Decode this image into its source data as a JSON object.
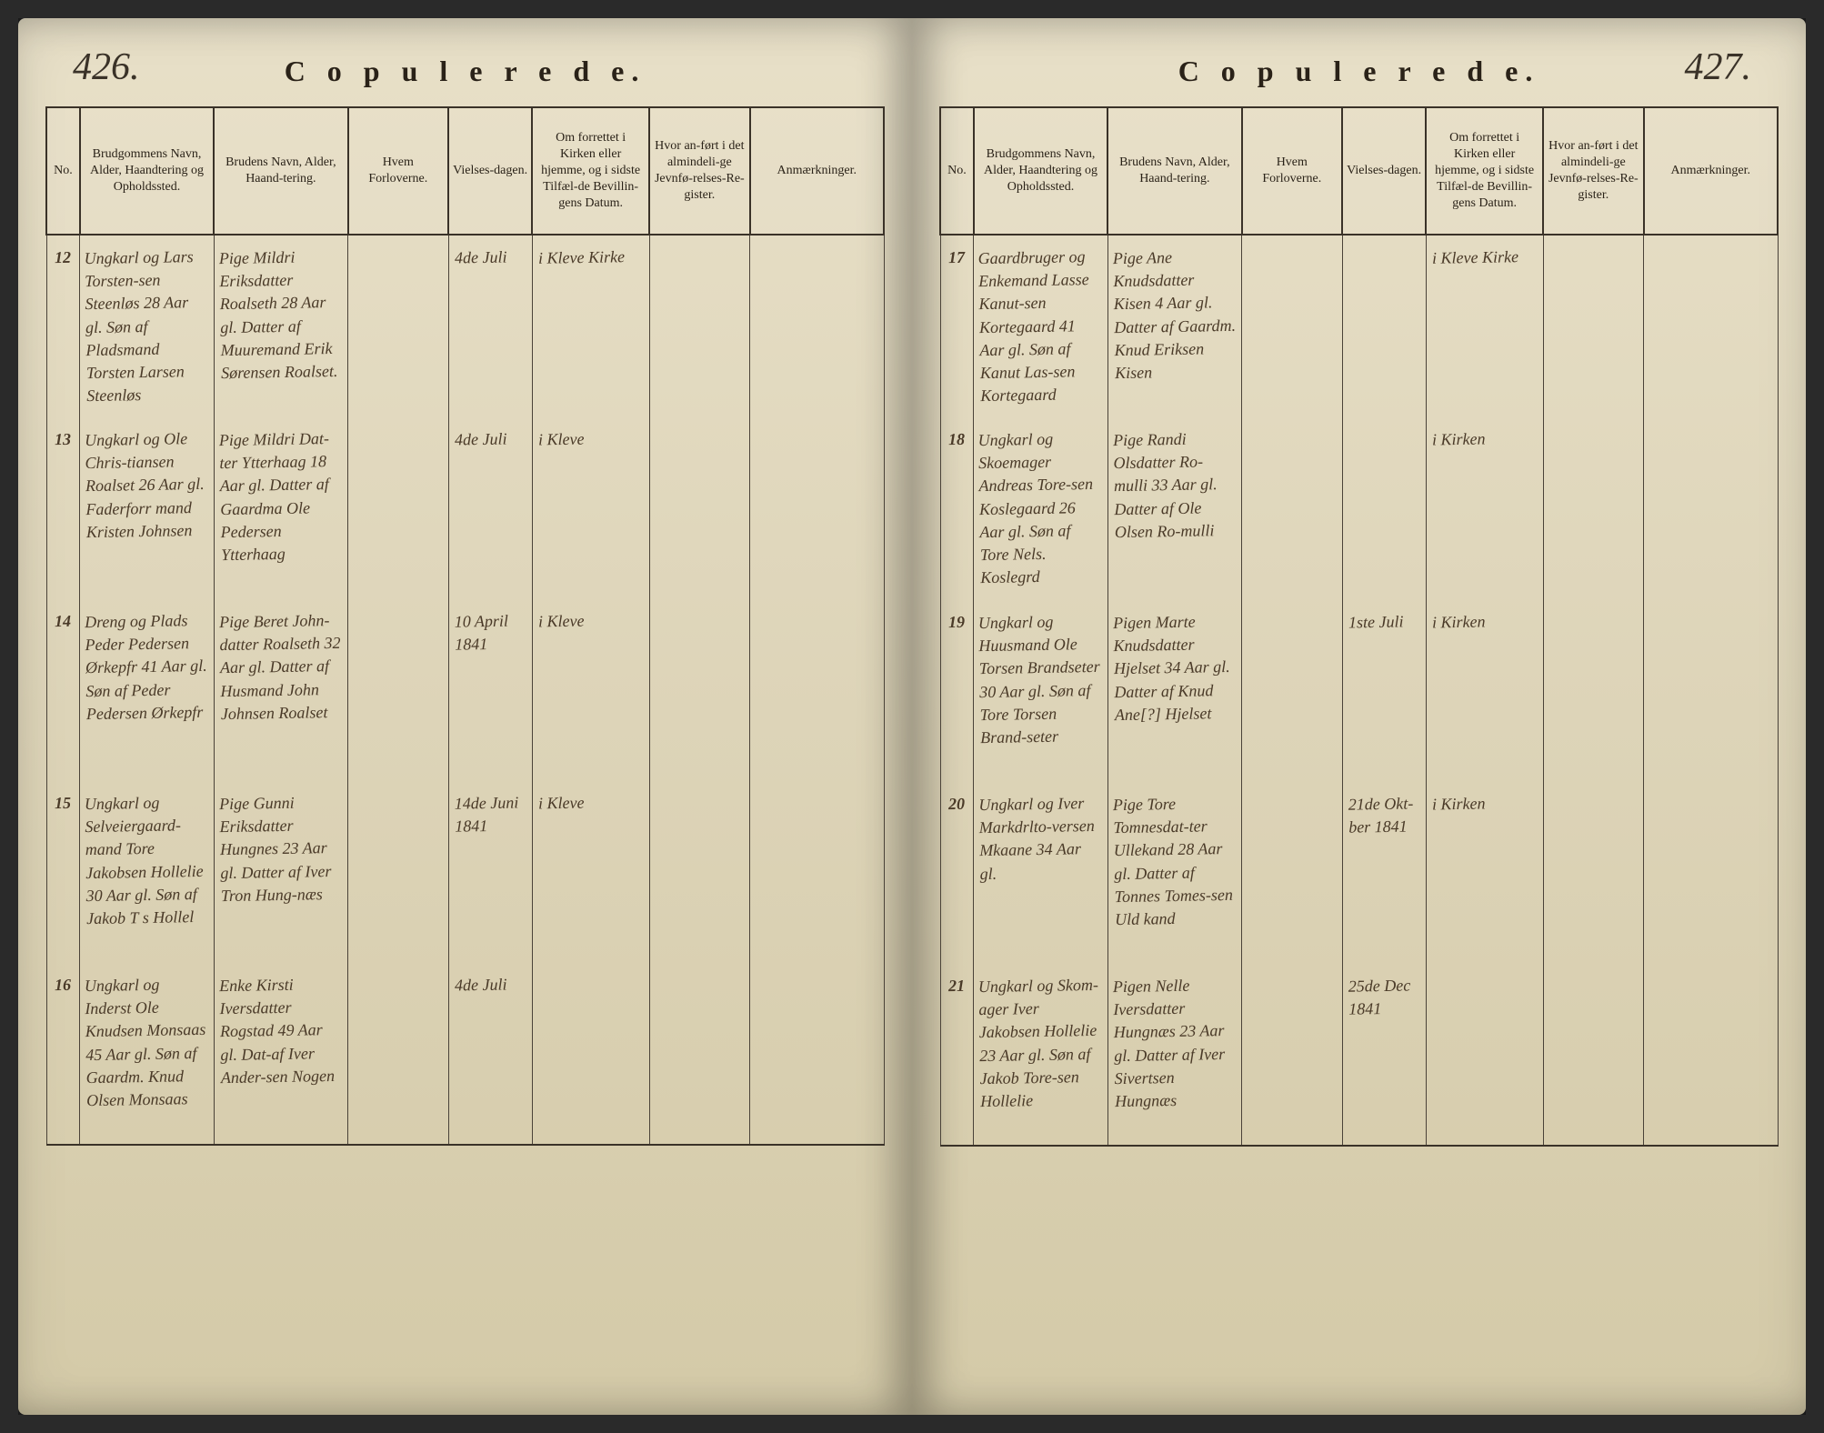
{
  "pages": {
    "left": {
      "number": "426.",
      "title": "C o p u l e r e d e."
    },
    "right": {
      "number": "427.",
      "title": "C o p u l e r e d e."
    }
  },
  "headers": {
    "no": "No.",
    "groom": "Brudgommens Navn, Alder, Haandtering og Opholdssted.",
    "bride": "Brudens Navn, Alder, Haand-tering.",
    "sponsors": "Hvem Forloverne.",
    "date": "Vielses-dagen.",
    "church": "Om forrettet i Kirken eller hjemme, og i sidste Tilfæl-de Bevillin-gens Datum.",
    "reference": "Hvor an-ført i det almindeli-ge Jevnfø-relses-Re-gister.",
    "notes": "Anmærkninger."
  },
  "left_rows": [
    {
      "no": "12",
      "groom": "Ungkarl og Lars Torsten-sen Steenløs 28 Aar gl. Søn af Pladsmand Torsten Larsen Steenløs",
      "bride": "Pige Mildri Eriksdatter Roalseth 28 Aar gl. Datter af Muuremand Erik Sørensen Roalset.",
      "sponsors": "",
      "date": "4de Juli",
      "church": "i Kleve Kirke",
      "reference": "",
      "notes": ""
    },
    {
      "no": "13",
      "groom": "Ungkarl og Ole Chris-tiansen Roalset 26 Aar gl. Faderforr mand Kristen Johnsen",
      "bride": "Pige Mildri Dat-ter Ytterhaag 18 Aar gl. Datter af Gaardma Ole Pedersen Ytterhaag",
      "sponsors": "",
      "date": "4de Juli",
      "church": "i Kleve",
      "reference": "",
      "notes": ""
    },
    {
      "no": "14",
      "groom": "Dreng og Plads Peder Pedersen Ørkepfr 41 Aar gl. Søn af Peder Pedersen Ørkepfr",
      "bride": "Pige Beret John-datter Roalseth 32 Aar gl. Datter af Husmand John Johnsen Roalset",
      "sponsors": "",
      "date": "10 April 1841",
      "church": "i Kleve",
      "reference": "",
      "notes": ""
    },
    {
      "no": "15",
      "groom": "Ungkarl og Selveiergaard-mand Tore Jakobsen Hollelie 30 Aar gl. Søn af Jakob T s Hollel",
      "bride": "Pige Gunni Eriksdatter Hungnes 23 Aar gl. Datter af Iver Tron Hung-næs",
      "sponsors": "",
      "date": "14de Juni 1841",
      "church": "i Kleve",
      "reference": "",
      "notes": ""
    },
    {
      "no": "16",
      "groom": "Ungkarl og Inderst Ole Knudsen Monsaas 45 Aar gl. Søn af Gaardm. Knud Olsen Monsaas",
      "bride": "Enke Kirsti Iversdatter Rogstad 49 Aar gl. Dat-af Iver Ander-sen Nogen",
      "sponsors": "",
      "date": "4de Juli",
      "church": "",
      "reference": "",
      "notes": ""
    }
  ],
  "right_rows": [
    {
      "no": "17",
      "groom": "Gaardbruger og Enkemand Lasse Kanut-sen Kortegaard 41 Aar gl. Søn af Kanut Las-sen Kortegaard",
      "bride": "Pige Ane Knudsdatter Kisen 4 Aar gl. Datter af Gaardm. Knud Eriksen Kisen",
      "sponsors": "",
      "date": "",
      "church": "i Kleve Kirke",
      "reference": "",
      "notes": ""
    },
    {
      "no": "18",
      "groom": "Ungkarl og Skoemager Andreas Tore-sen Koslegaard 26 Aar gl. Søn af Tore Nels. Koslegrd",
      "bride": "Pige Randi Olsdatter Ro-mulli 33 Aar gl. Datter af Ole Olsen Ro-mulli",
      "sponsors": "",
      "date": "",
      "church": "i Kirken",
      "reference": "",
      "notes": ""
    },
    {
      "no": "19",
      "groom": "Ungkarl og Huusmand Ole Torsen Brandseter 30 Aar gl. Søn af Tore Torsen Brand-seter",
      "bride": "Pigen Marte Knudsdatter Hjelset 34 Aar gl. Datter af Knud Ane[?] Hjelset",
      "sponsors": "",
      "date": "1ste Juli",
      "church": "i Kirken",
      "reference": "",
      "notes": ""
    },
    {
      "no": "20",
      "groom": "Ungkarl og Iver Markdrlto-versen Mkaane 34 Aar gl.",
      "bride": "Pige Tore Tomnesdat-ter Ullekand 28 Aar gl. Datter af Tonnes Tomes-sen Uld kand",
      "sponsors": "",
      "date": "21de Okt-ber 1841",
      "church": "i Kirken",
      "reference": "",
      "notes": ""
    },
    {
      "no": "21",
      "groom": "Ungkarl og Skom-ager Iver Jakobsen Hollelie 23 Aar gl. Søn af Jakob Tore-sen Hollelie",
      "bride": "Pigen Nelle Iversdatter Hungnæs 23 Aar gl. Datter af Iver Sivertsen Hungnæs",
      "sponsors": "",
      "date": "25de Dec 1841",
      "church": "",
      "reference": "",
      "notes": ""
    }
  ]
}
